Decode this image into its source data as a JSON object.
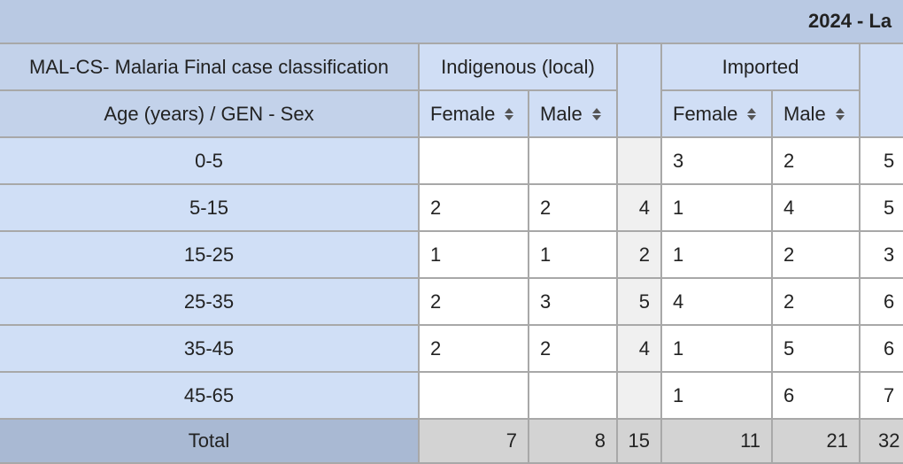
{
  "title": "2024 - La",
  "header": {
    "row_dimension": "MAL-CS- Malaria Final case classification",
    "row_label": "Age (years) / GEN - Sex",
    "groups": [
      "Indigenous (local)",
      "Imported"
    ],
    "subgroups": [
      "Female",
      "Male",
      "Female",
      "Male"
    ]
  },
  "rows": [
    {
      "label": "0-5",
      "cells": [
        null,
        null,
        null,
        3,
        2,
        5
      ]
    },
    {
      "label": "5-15",
      "cells": [
        2,
        2,
        4,
        1,
        4,
        5
      ]
    },
    {
      "label": "15-25",
      "cells": [
        1,
        1,
        2,
        1,
        2,
        3
      ]
    },
    {
      "label": "25-35",
      "cells": [
        2,
        3,
        5,
        4,
        2,
        6
      ]
    },
    {
      "label": "35-45",
      "cells": [
        2,
        2,
        4,
        1,
        5,
        6
      ]
    },
    {
      "label": "45-65",
      "cells": [
        null,
        null,
        null,
        1,
        6,
        7
      ]
    }
  ],
  "total": {
    "label": "Total",
    "cells": [
      7,
      8,
      15,
      11,
      21,
      32
    ]
  }
}
